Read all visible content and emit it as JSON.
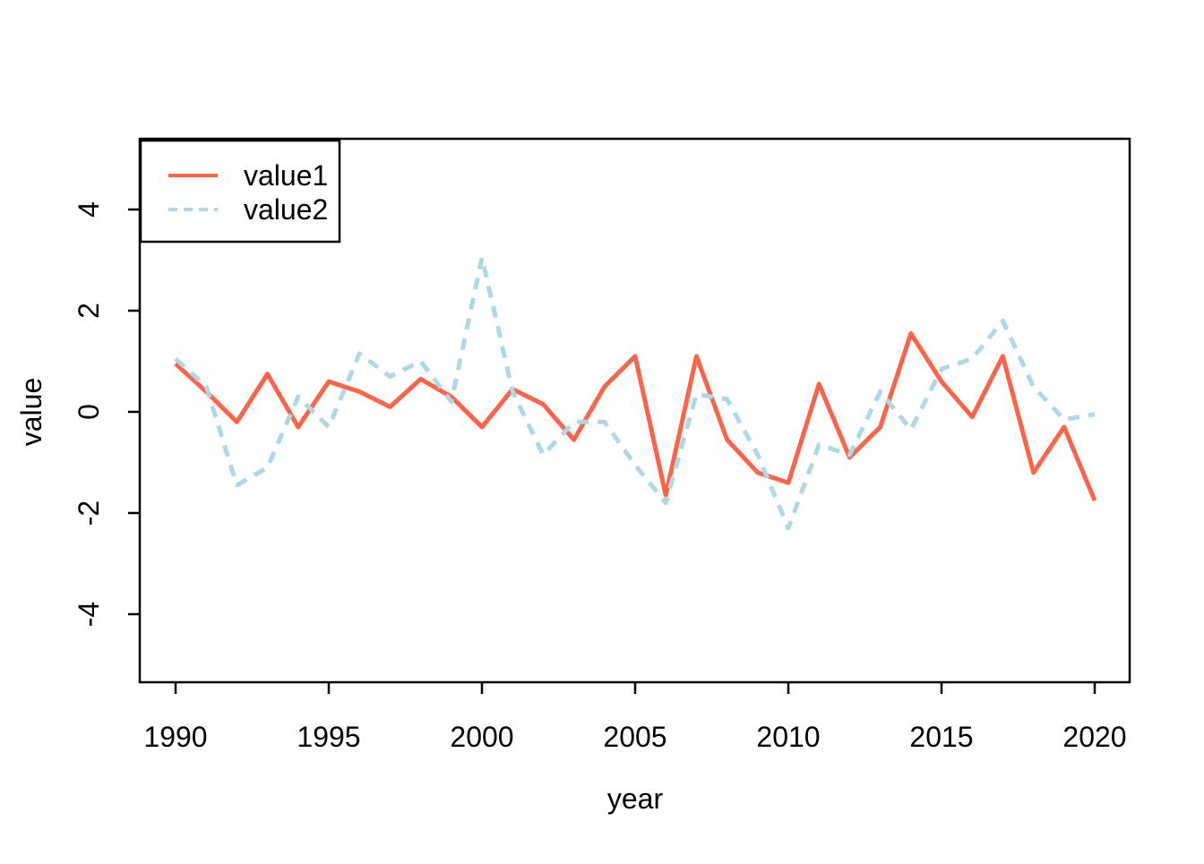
{
  "figure": {
    "background": "#ffffff",
    "text_color": "#000000"
  },
  "chart_data": {
    "type": "line",
    "title": "",
    "xlabel": "year",
    "ylabel": "value",
    "x_ticks": [
      1990,
      1995,
      2000,
      2005,
      2010,
      2015,
      2020
    ],
    "y_ticks": [
      -4,
      -2,
      0,
      2,
      4
    ],
    "xlim": [
      1988.8,
      2021.2
    ],
    "ylim": [
      -5.4,
      5.4
    ],
    "grid": false,
    "legend_position": "topleft",
    "x": [
      1990,
      1991,
      1992,
      1993,
      1994,
      1995,
      1996,
      1997,
      1998,
      1999,
      2000,
      2001,
      2002,
      2003,
      2004,
      2005,
      2006,
      2007,
      2008,
      2009,
      2010,
      2011,
      2012,
      2013,
      2014,
      2015,
      2016,
      2017,
      2018,
      2019,
      2020
    ],
    "series": [
      {
        "name": "value1",
        "color": "#FF6347",
        "style": "solid",
        "values": [
          0.95,
          0.4,
          -0.2,
          0.75,
          -0.3,
          0.6,
          0.4,
          0.1,
          0.65,
          0.3,
          -0.3,
          0.45,
          0.15,
          -0.55,
          0.5,
          1.1,
          -1.65,
          1.1,
          -0.55,
          -1.2,
          -1.4,
          0.55,
          -0.9,
          -0.3,
          1.55,
          0.6,
          -0.1,
          1.1,
          -1.2,
          -0.3,
          -1.75
        ]
      },
      {
        "name": "value2",
        "color": "#ADD8E6",
        "style": "dashed",
        "values": [
          1.05,
          0.5,
          -1.45,
          -1.1,
          0.3,
          -0.3,
          1.15,
          0.7,
          1.0,
          0.2,
          3.05,
          0.4,
          -0.85,
          -0.2,
          -0.2,
          -1.05,
          -1.8,
          0.35,
          0.25,
          -0.85,
          -2.3,
          -0.65,
          -0.85,
          0.4,
          -0.35,
          0.85,
          1.05,
          1.8,
          0.5,
          -0.15,
          -0.05
        ]
      }
    ]
  }
}
